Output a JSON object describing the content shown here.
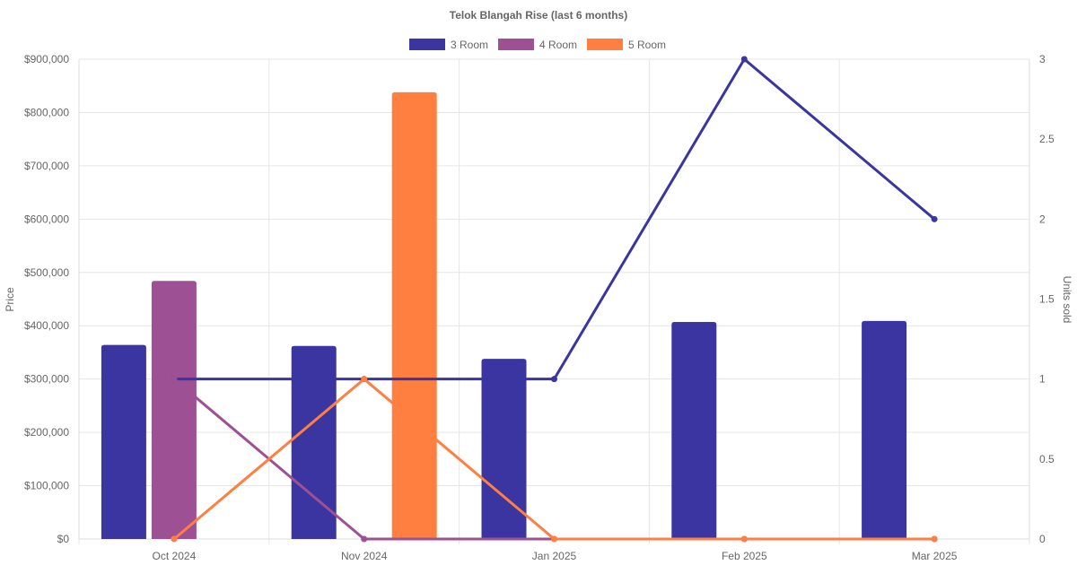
{
  "chart_data": {
    "type": "bar",
    "title": "Telok Blangah Rise (last 6 months)",
    "categories": [
      "Oct 2024",
      "Nov 2024",
      "Jan 2025",
      "Feb 2025",
      "Mar 2025"
    ],
    "ylabel": "Price",
    "y2label": "Units sold",
    "ylim": [
      0,
      900000
    ],
    "y2lim": [
      0,
      3
    ],
    "y_ticks": [
      "$0",
      "$100,000",
      "$200,000",
      "$300,000",
      "$400,000",
      "$500,000",
      "$600,000",
      "$700,000",
      "$800,000",
      "$900,000"
    ],
    "y2_ticks": [
      "0",
      "0.5",
      "1",
      "1.5",
      "2",
      "2.5",
      "3"
    ],
    "grid": true,
    "legend_position": "top",
    "series": [
      {
        "name": "3 Room",
        "color": "#3a35a0",
        "price": [
          364000,
          362000,
          338000,
          407000,
          409000
        ],
        "units": [
          1,
          1,
          1,
          3,
          2
        ]
      },
      {
        "name": "4 Room",
        "color": "#9e5095",
        "price": [
          484000,
          null,
          null,
          null,
          null
        ],
        "units": [
          1,
          0,
          0,
          0,
          0
        ]
      },
      {
        "name": "5 Room",
        "color": "#ff7f41",
        "price": [
          null,
          838000,
          null,
          null,
          null
        ],
        "units": [
          0,
          1,
          0,
          0,
          0
        ]
      }
    ]
  }
}
